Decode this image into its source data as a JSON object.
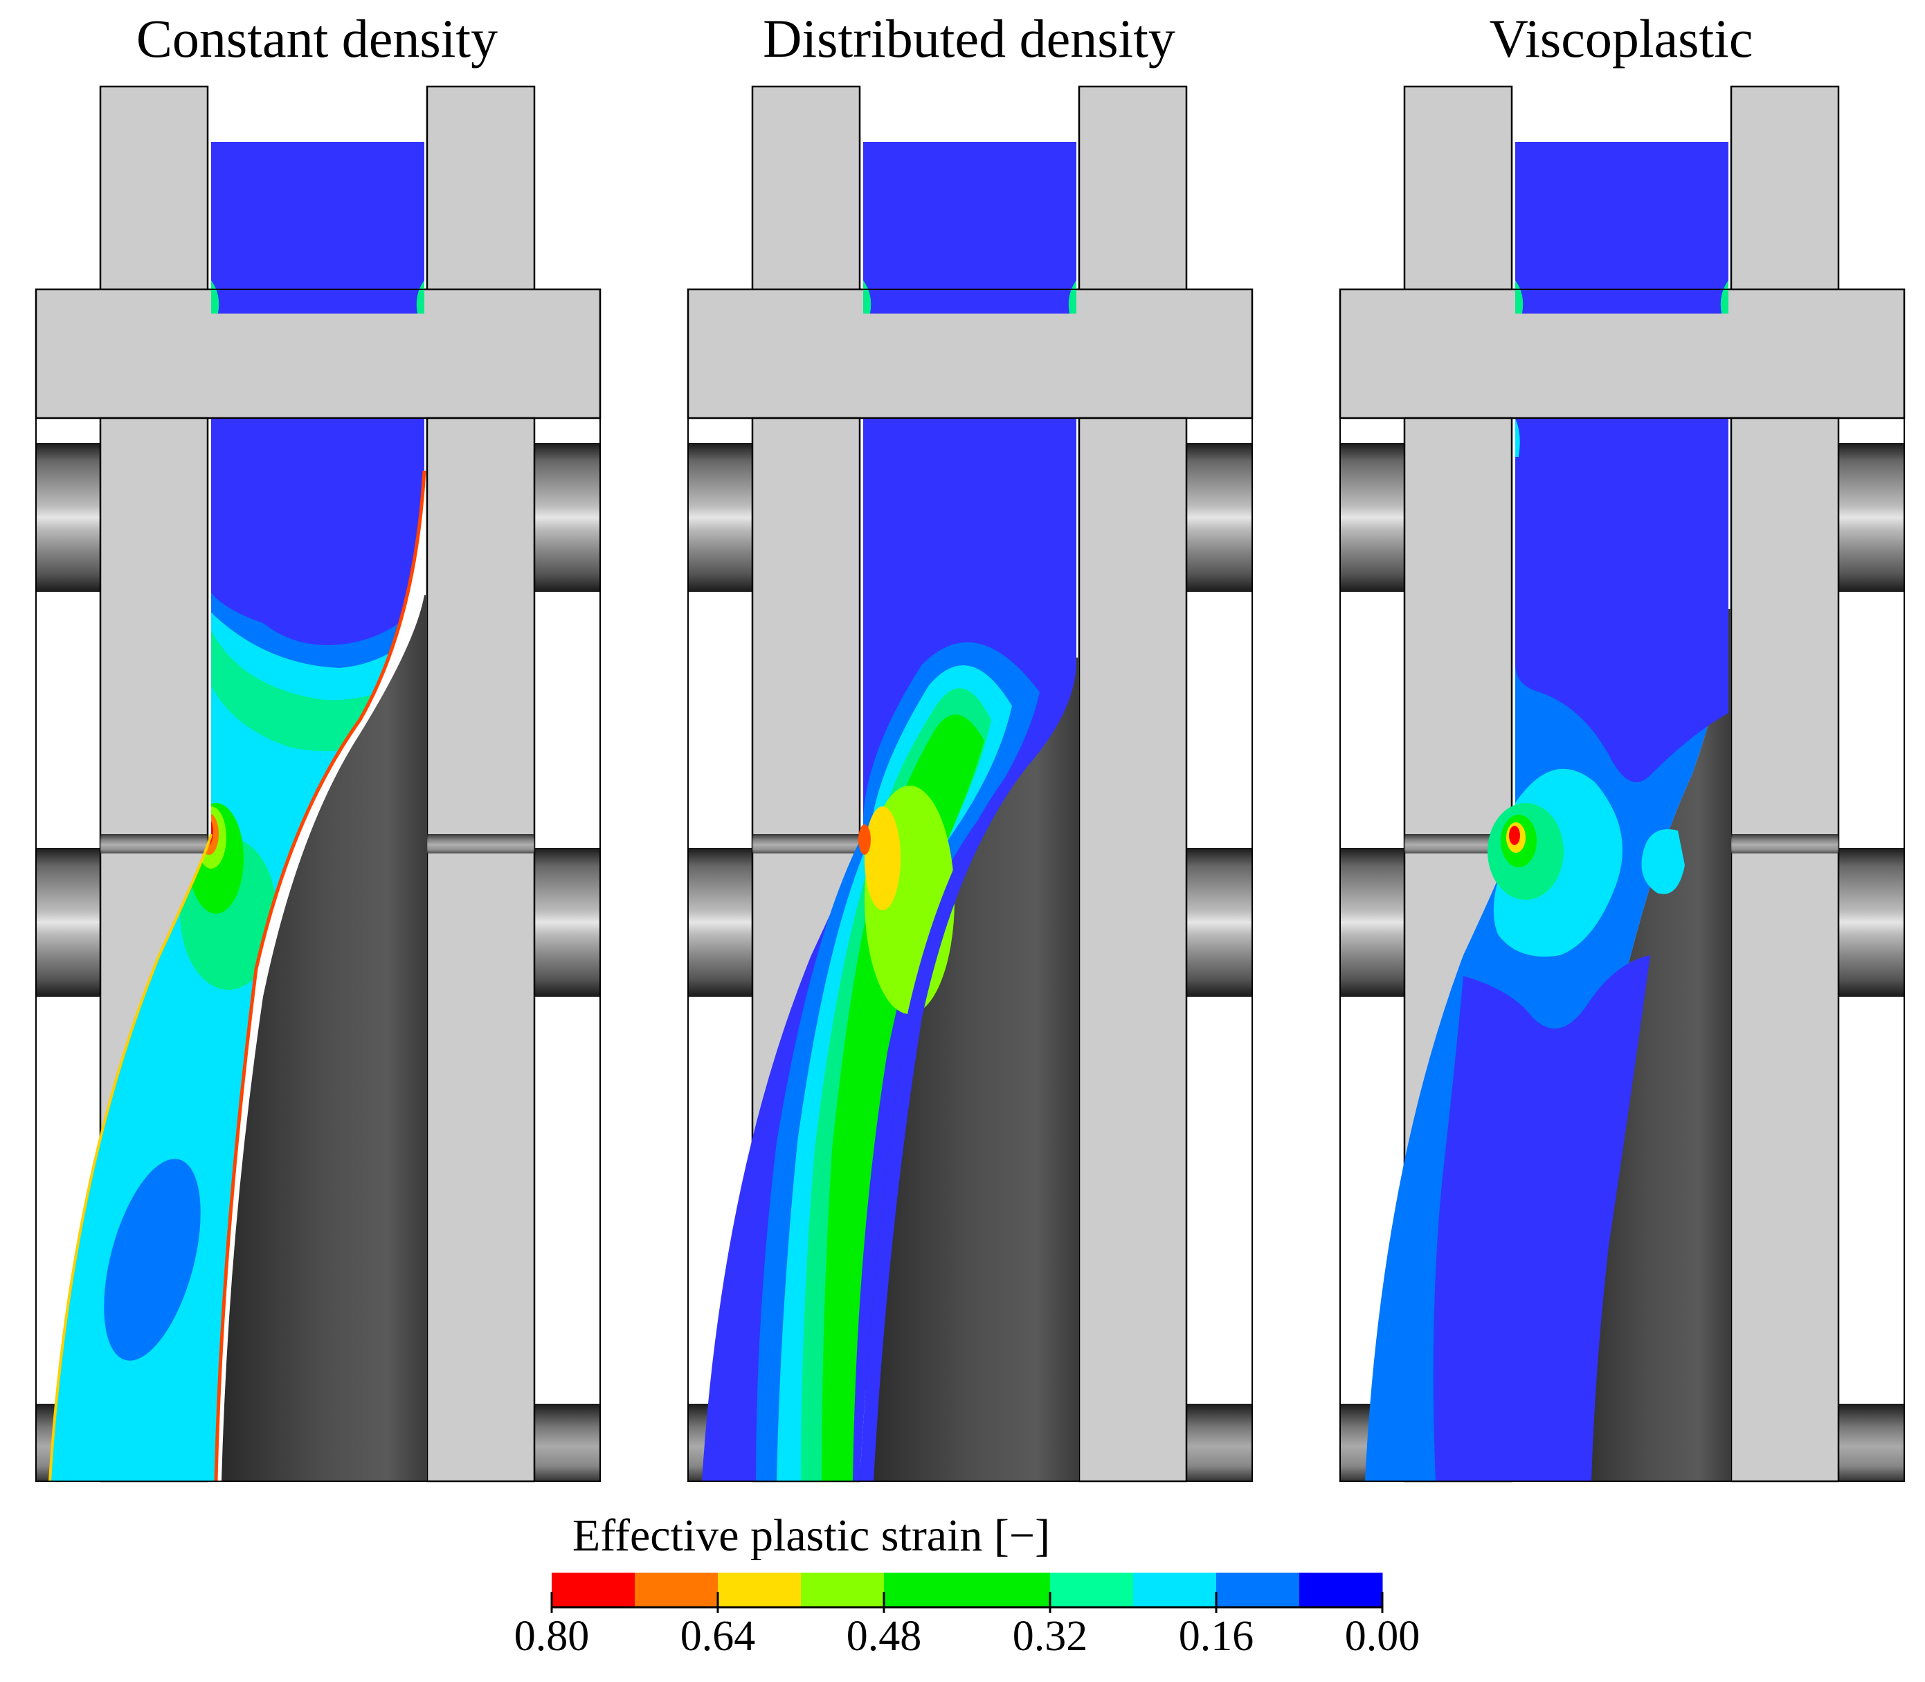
{
  "panels": [
    {
      "title": "Constant density"
    },
    {
      "title": "Distributed density"
    },
    {
      "title": "Viscoplastic"
    }
  ],
  "legend": {
    "title": "Effective plastic strain [−]",
    "colors": [
      "#ff0000",
      "#ff7700",
      "#ffdd00",
      "#88ff00",
      "#00ee00",
      "#00ee00",
      "#00ff99",
      "#00e5ff",
      "#0077ff",
      "#0000ff"
    ],
    "tick_labels": [
      "0.80",
      "0.64",
      "0.48",
      "0.32",
      "0.16",
      "0.00"
    ]
  }
}
